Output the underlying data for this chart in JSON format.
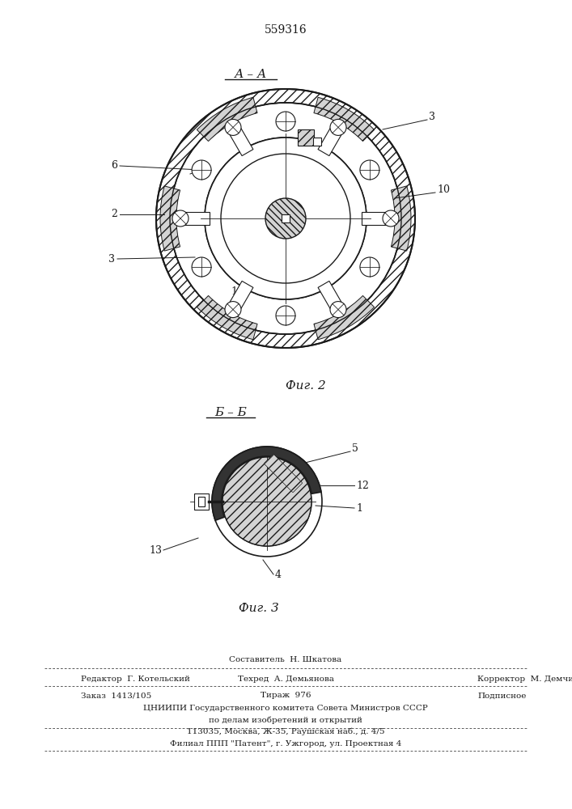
{
  "patent_number": "559316",
  "section_label_1": "А – А",
  "section_label_2": "Б – Б",
  "fig_label_1": "Фиг. 2",
  "fig_label_2": "Фиг. 3",
  "footer_line1": "Составитель  Н. Шкатова",
  "footer_line2_left": "Редактор  Г. Котельский",
  "footer_line2_mid": "Техред  А. Демьянова",
  "footer_line2_right": "Корректор  М. Демчик",
  "footer_line3_left": "Заказ  1413/105",
  "footer_line3_mid": "Тираж  976",
  "footer_line3_right": "Подписное",
  "footer_line4": "ЦНИИПИ Государственного комитета Совета Министров СССР",
  "footer_line5": "по делам изобретений и открытий",
  "footer_line6": "113035, Москва, Ж-35, Раушская наб., д. 4/5",
  "footer_line7": "Филиал ППП \"Патент\", г. Ужгород, ул. Проектная 4",
  "bg_color": "#ffffff",
  "line_color": "#1a1a1a"
}
